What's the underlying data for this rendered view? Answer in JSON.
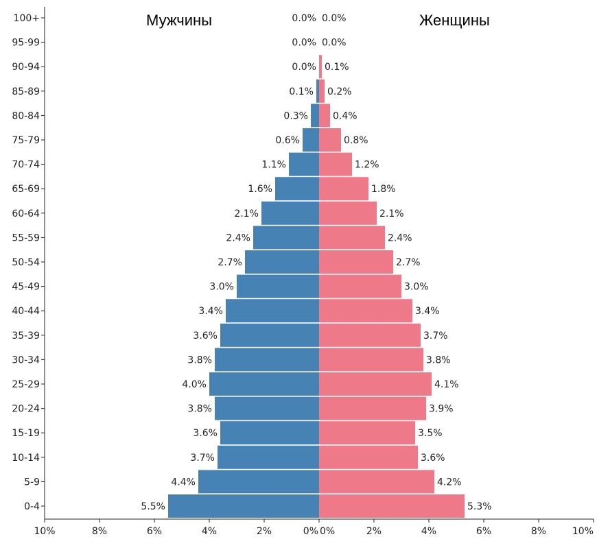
{
  "chart_data": {
    "type": "bar",
    "orientation": "horizontal-diverging",
    "categories": [
      "0-4",
      "5-9",
      "10-14",
      "15-19",
      "20-24",
      "25-29",
      "30-34",
      "35-39",
      "40-44",
      "45-49",
      "50-54",
      "55-59",
      "60-64",
      "65-69",
      "70-74",
      "75-79",
      "80-84",
      "85-89",
      "90-94",
      "95-99",
      "100+"
    ],
    "series": [
      {
        "name": "Мужчины",
        "color": "#4682b4",
        "values": [
          5.5,
          4.4,
          3.7,
          3.6,
          3.8,
          4.0,
          3.8,
          3.6,
          3.4,
          3.0,
          2.7,
          2.4,
          2.1,
          1.6,
          1.1,
          0.6,
          0.3,
          0.1,
          0.0,
          0.0,
          0.0
        ],
        "labels": [
          "5.5%",
          "4.4%",
          "3.7%",
          "3.6%",
          "3.8%",
          "4.0%",
          "3.8%",
          "3.6%",
          "3.4%",
          "3.0%",
          "2.7%",
          "2.4%",
          "2.1%",
          "1.6%",
          "1.1%",
          "0.6%",
          "0.3%",
          "0.1%",
          "0.0%",
          "0.0%",
          "0.0%"
        ]
      },
      {
        "name": "Женщины",
        "color": "#ee7989",
        "values": [
          5.3,
          4.2,
          3.6,
          3.5,
          3.9,
          4.1,
          3.8,
          3.7,
          3.4,
          3.0,
          2.7,
          2.4,
          2.1,
          1.8,
          1.2,
          0.8,
          0.4,
          0.2,
          0.1,
          0.0,
          0.0
        ],
        "labels": [
          "5.3%",
          "4.2%",
          "3.6%",
          "3.5%",
          "3.9%",
          "4.1%",
          "3.8%",
          "3.7%",
          "3.4%",
          "3.0%",
          "2.7%",
          "2.4%",
          "2.1%",
          "1.8%",
          "1.2%",
          "0.8%",
          "0.4%",
          "0.2%",
          "0.1%",
          "0.0%",
          "0.0%"
        ]
      }
    ],
    "x_ticks_left": [
      "10%",
      "8%",
      "6%",
      "4%",
      "2%",
      "0%"
    ],
    "x_ticks_right": [
      "0%",
      "2%",
      "4%",
      "6%",
      "8%",
      "10%"
    ],
    "xlim": [
      0,
      10
    ],
    "grid": false,
    "legend": "none"
  }
}
